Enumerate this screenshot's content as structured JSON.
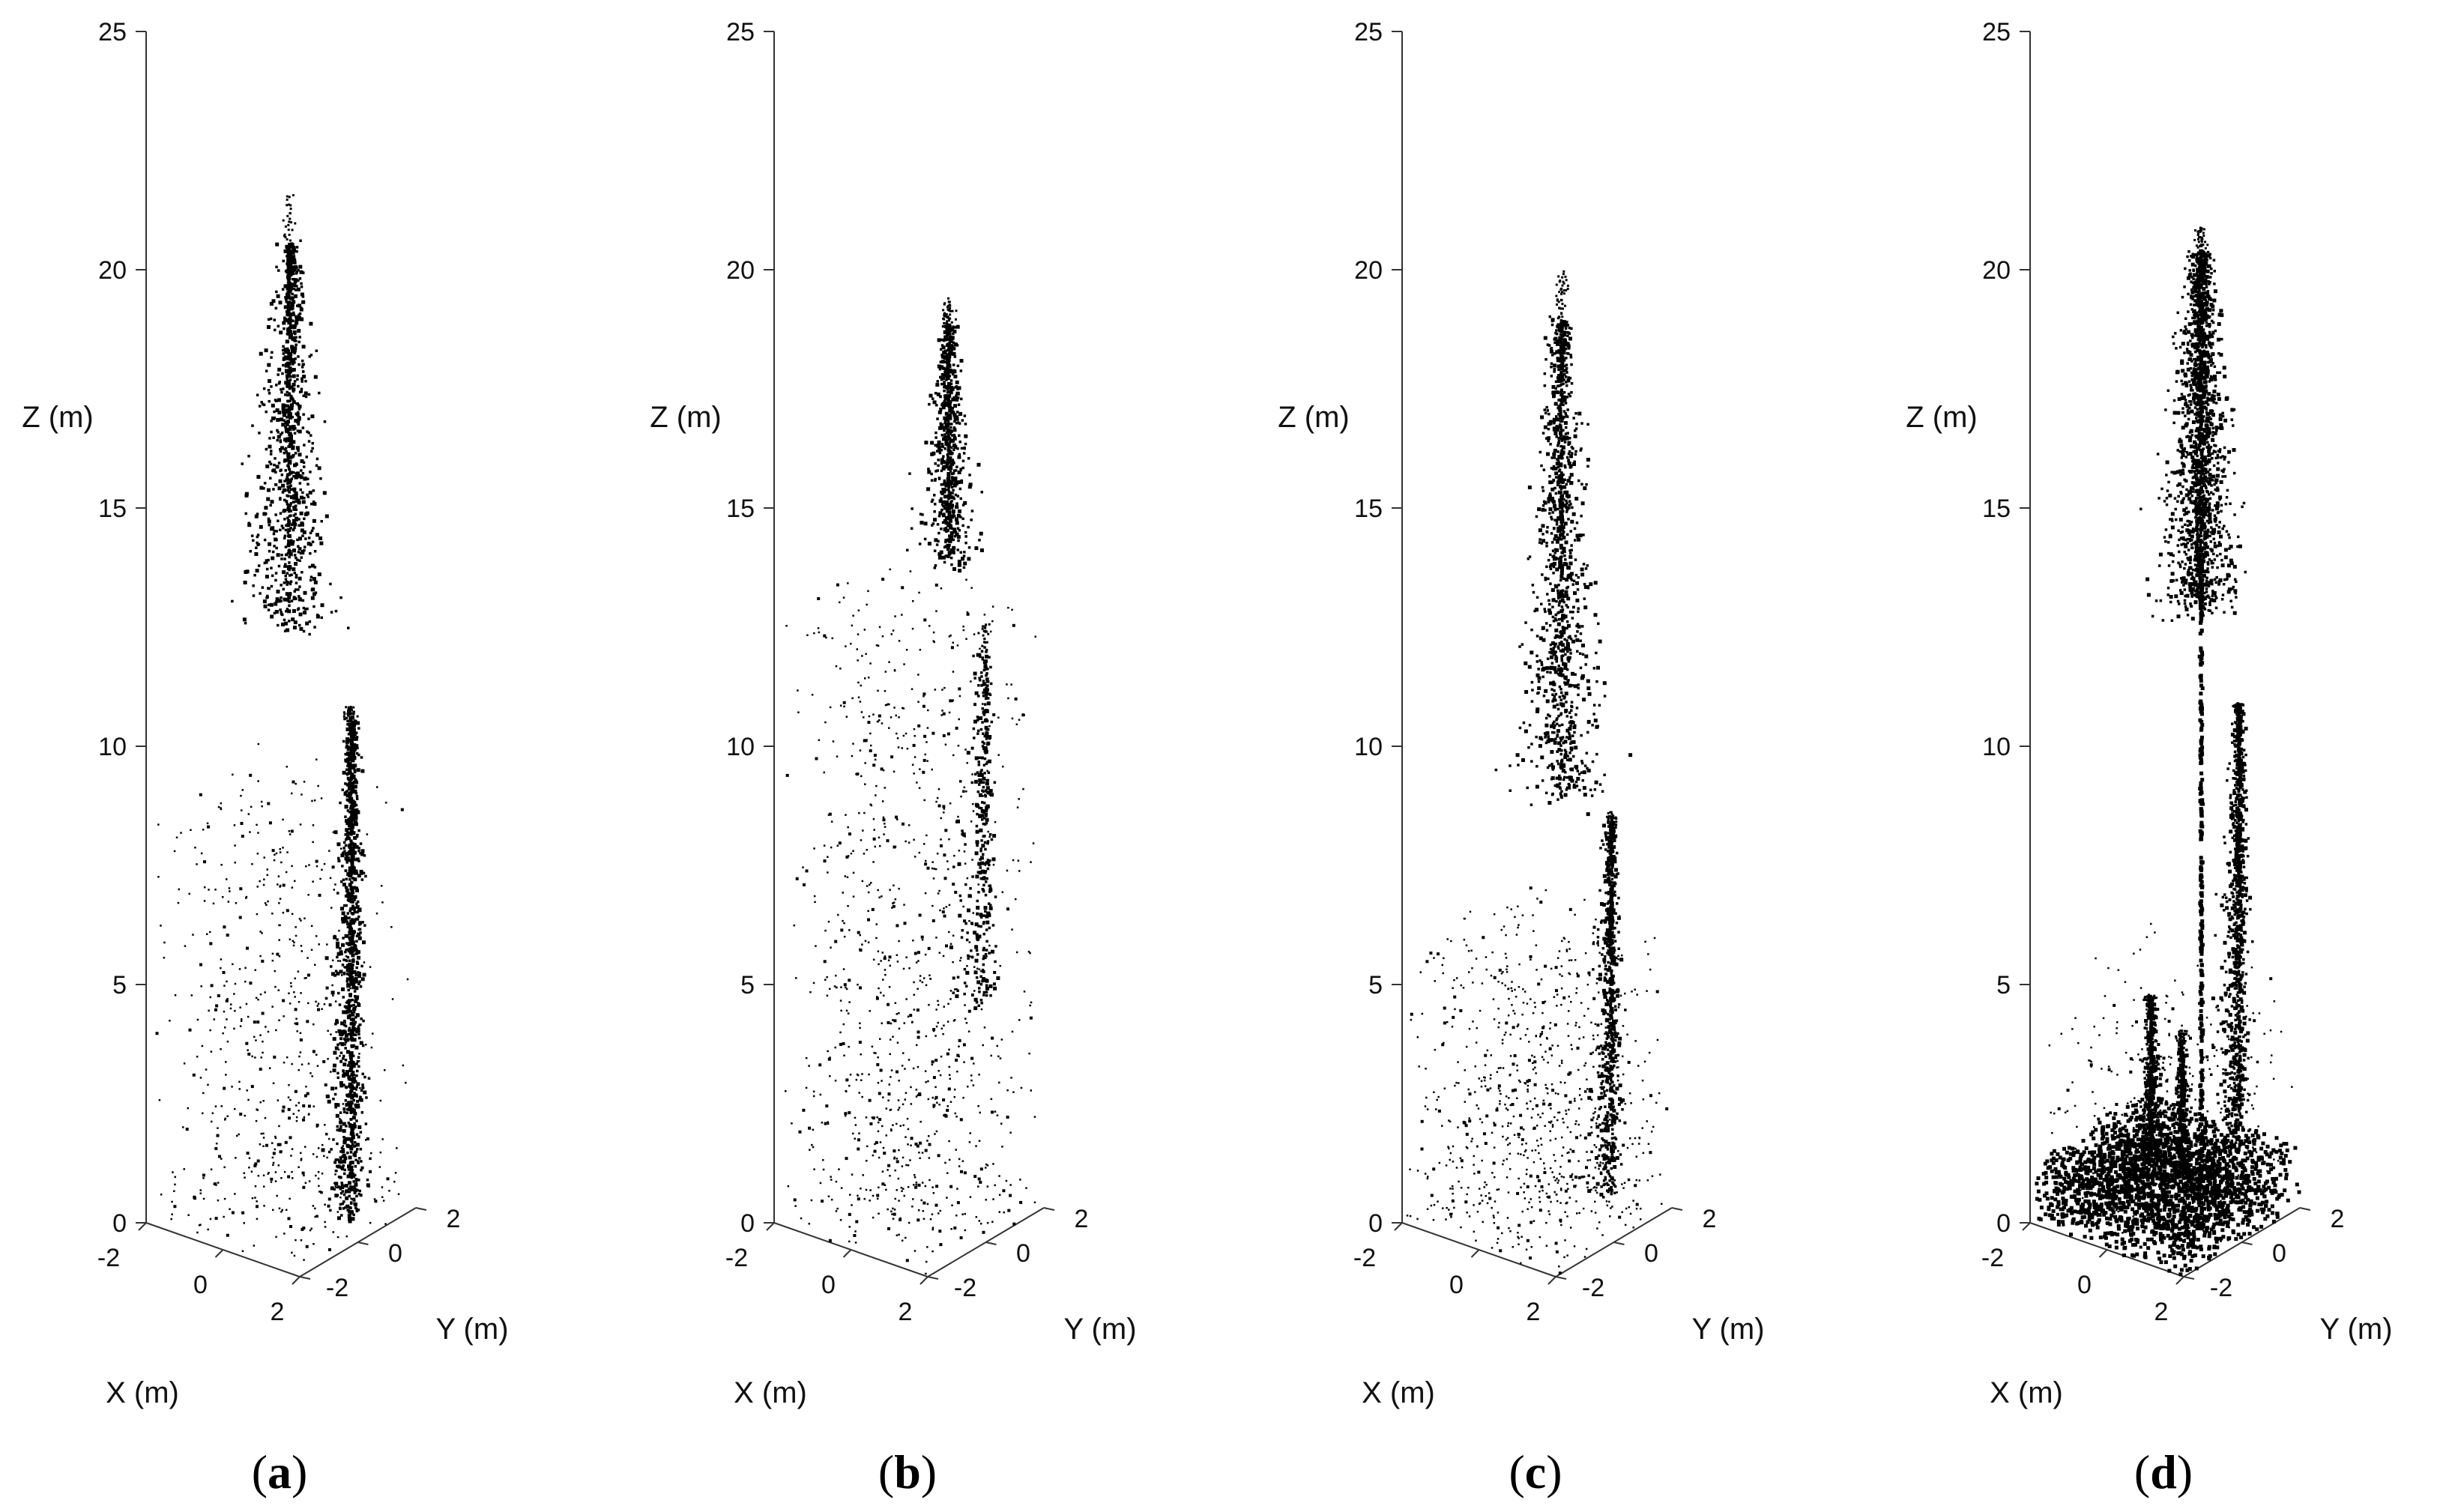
{
  "chart_data": [
    {
      "type": "scatter",
      "subtype": "3d-point-cloud",
      "panel_label": "a",
      "xlabel": "X (m)",
      "ylabel": "Y (m)",
      "zlabel": "Z (m)",
      "x_ticks": [
        "-2",
        "0",
        "2"
      ],
      "y_ticks": [
        "-2",
        "0",
        "2"
      ],
      "z_ticks": [
        "0",
        "5",
        "10",
        "15",
        "20",
        "25"
      ],
      "xlim": [
        -2,
        2
      ],
      "ylim": [
        -2,
        2
      ],
      "zlim": [
        0,
        25
      ],
      "grid": false,
      "point_color": "#000000",
      "vertical_gap_x": 0.0,
      "trees": [
        {
          "x": 0.15,
          "z_base": 0,
          "z_top": 21.5,
          "crown_bottom": 12.5,
          "crown_top": 20.5,
          "crown_radius": 1.4,
          "density": 1500
        },
        {
          "x": 1.8,
          "z_base": 0,
          "z_top": 11.2,
          "crown_bottom": 0.5,
          "crown_top": 11.0,
          "crown_radius": 0.9,
          "density": 1300
        }
      ],
      "understory": {
        "z_top": 9,
        "density": 700
      }
    },
    {
      "type": "scatter",
      "subtype": "3d-point-cloud",
      "panel_label": "b",
      "xlabel": "X (m)",
      "ylabel": "Y (m)",
      "zlabel": "Z (m)",
      "x_ticks": [
        "-2",
        "0",
        "2"
      ],
      "y_ticks": [
        "-2",
        "0",
        "2"
      ],
      "z_ticks": [
        "0",
        "5",
        "10",
        "15",
        "20",
        "25"
      ],
      "xlim": [
        -2,
        2
      ],
      "ylim": [
        -2,
        2
      ],
      "zlim": [
        0,
        25
      ],
      "grid": false,
      "point_color": "#000000",
      "trees": [
        {
          "x": 1.0,
          "z_base": 5,
          "z_top": 19.5,
          "crown_bottom": 14,
          "crown_top": 19,
          "crown_radius": 1.0,
          "density": 700
        },
        {
          "x": 2.0,
          "z_base": 3,
          "z_top": 13,
          "crown_bottom": 5,
          "crown_top": 12.5,
          "crown_radius": 1.1,
          "density": 700
        }
      ],
      "understory": {
        "z_top": 13,
        "density": 1000
      }
    },
    {
      "type": "scatter",
      "subtype": "3d-point-cloud",
      "panel_label": "c",
      "xlabel": "X (m)",
      "ylabel": "Y (m)",
      "zlabel": "Z (m)",
      "x_ticks": [
        "-2",
        "0",
        "2"
      ],
      "y_ticks": [
        "-2",
        "0",
        "2"
      ],
      "z_ticks": [
        "0",
        "5",
        "10",
        "15",
        "20",
        "25"
      ],
      "xlim": [
        -2,
        2
      ],
      "ylim": [
        -2,
        2
      ],
      "zlim": [
        0,
        25
      ],
      "grid": false,
      "point_color": "#000000",
      "vertical_gap_x": -0.8,
      "trees": [
        {
          "x": 0.6,
          "z_base": 0,
          "z_top": 20,
          "crown_bottom": 9,
          "crown_top": 19,
          "crown_radius": 1.5,
          "density": 1200
        },
        {
          "x": 1.9,
          "z_base": 0,
          "z_top": 9,
          "crown_bottom": 1,
          "crown_top": 8.8,
          "crown_radius": 0.8,
          "density": 900
        }
      ],
      "understory": {
        "z_top": 6,
        "density": 900
      }
    },
    {
      "type": "scatter",
      "subtype": "3d-point-cloud",
      "panel_label": "d",
      "xlabel": "X (m)",
      "ylabel": "Y (m)",
      "zlabel": "Z (m)",
      "x_ticks": [
        "-2",
        "0",
        "2"
      ],
      "y_ticks": [
        "-2",
        "0",
        "2"
      ],
      "z_ticks": [
        "0",
        "5",
        "10",
        "15",
        "20",
        "25"
      ],
      "xlim": [
        -2,
        2
      ],
      "ylim": [
        -2,
        2
      ],
      "zlim": [
        0,
        25
      ],
      "grid": false,
      "point_color": "#000000",
      "trees": [
        {
          "x": 0.9,
          "z_base": 0,
          "z_top": 21,
          "crown_bottom": 13,
          "crown_top": 20.5,
          "crown_radius": 1.4,
          "density": 1800
        },
        {
          "x": 1.9,
          "z_base": 0,
          "z_top": 11.3,
          "crown_bottom": 2,
          "crown_top": 11.2,
          "crown_radius": 0.8,
          "density": 1300
        },
        {
          "x": -0.4,
          "z_base": 1,
          "z_top": 4.5,
          "crown_bottom": 1,
          "crown_top": 4.4,
          "crown_radius": 0.5,
          "density": 500
        },
        {
          "x": 0.4,
          "z_base": 1,
          "z_top": 4,
          "crown_bottom": 1,
          "crown_top": 3.8,
          "crown_radius": 0.4,
          "density": 400
        }
      ],
      "stem": {
        "x": 0.9,
        "z_top": 14
      },
      "ground_layer": {
        "z_top": 1.4,
        "density": 2200
      },
      "understory": {
        "z_top": 5,
        "density": 300
      }
    }
  ]
}
